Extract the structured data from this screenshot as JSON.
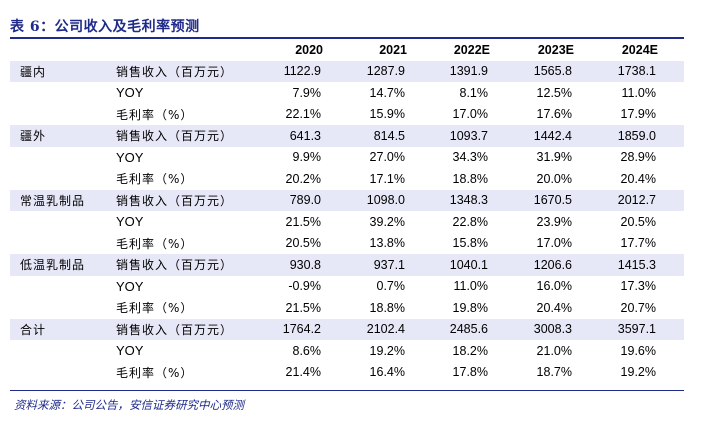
{
  "title": "表 6：公司收入及毛利率预测",
  "header": {
    "years": [
      "2020",
      "2021",
      "2022E",
      "2023E",
      "2024E"
    ]
  },
  "groups": [
    {
      "category": "疆内",
      "rows": [
        {
          "metric": "销售收入（百万元）",
          "values": [
            "1122.9",
            "1287.9",
            "1391.9",
            "1565.8",
            "1738.1"
          ]
        },
        {
          "metric": "YOY",
          "values": [
            "7.9%",
            "14.7%",
            "8.1%",
            "12.5%",
            "11.0%"
          ]
        },
        {
          "metric": "毛利率（%）",
          "values": [
            "22.1%",
            "15.9%",
            "17.0%",
            "17.6%",
            "17.9%"
          ]
        }
      ]
    },
    {
      "category": "疆外",
      "rows": [
        {
          "metric": "销售收入（百万元）",
          "values": [
            "641.3",
            "814.5",
            "1093.7",
            "1442.4",
            "1859.0"
          ]
        },
        {
          "metric": "YOY",
          "values": [
            "9.9%",
            "27.0%",
            "34.3%",
            "31.9%",
            "28.9%"
          ]
        },
        {
          "metric": "毛利率（%）",
          "values": [
            "20.2%",
            "17.1%",
            "18.8%",
            "20.0%",
            "20.4%"
          ]
        }
      ]
    },
    {
      "category": "常温乳制品",
      "rows": [
        {
          "metric": "销售收入（百万元）",
          "values": [
            "789.0",
            "1098.0",
            "1348.3",
            "1670.5",
            "2012.7"
          ]
        },
        {
          "metric": "YOY",
          "values": [
            "21.5%",
            "39.2%",
            "22.8%",
            "23.9%",
            "20.5%"
          ]
        },
        {
          "metric": "毛利率（%）",
          "values": [
            "20.5%",
            "13.8%",
            "15.8%",
            "17.0%",
            "17.7%"
          ]
        }
      ]
    },
    {
      "category": "低温乳制品",
      "rows": [
        {
          "metric": "销售收入（百万元）",
          "values": [
            "930.8",
            "937.1",
            "1040.1",
            "1206.6",
            "1415.3"
          ]
        },
        {
          "metric": "YOY",
          "values": [
            "-0.9%",
            "0.7%",
            "11.0%",
            "16.0%",
            "17.3%"
          ]
        },
        {
          "metric": "毛利率（%）",
          "values": [
            "21.5%",
            "18.8%",
            "19.8%",
            "20.4%",
            "20.7%"
          ]
        }
      ]
    },
    {
      "category": "合计",
      "rows": [
        {
          "metric": "销售收入（百万元）",
          "values": [
            "1764.2",
            "2102.4",
            "2485.6",
            "3008.3",
            "3597.1"
          ]
        },
        {
          "metric": "YOY",
          "values": [
            "8.6%",
            "19.2%",
            "18.2%",
            "21.0%",
            "19.6%"
          ]
        },
        {
          "metric": "毛利率（%）",
          "values": [
            "21.4%",
            "16.4%",
            "17.8%",
            "18.7%",
            "19.2%"
          ]
        }
      ]
    }
  ],
  "source": "资料来源：公司公告，安信证券研究中心预测",
  "colors": {
    "accent": "#1f2a8a",
    "row_highlight": "#e6e8f7"
  }
}
